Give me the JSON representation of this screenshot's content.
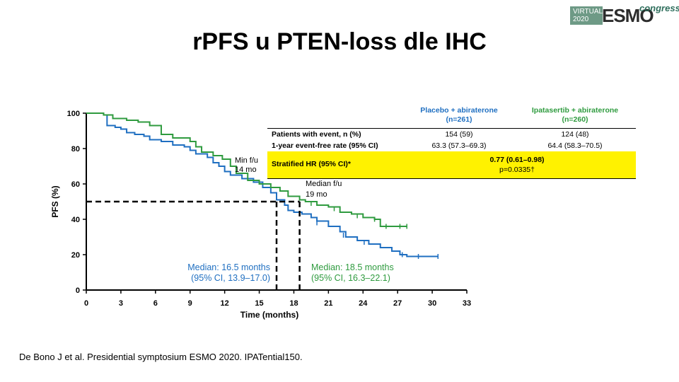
{
  "title": "rPFS u PTEN-loss dle IHC",
  "logo": {
    "virtual": "VIRTUAL",
    "year": "2020",
    "brand": "ESMO",
    "congress": "congress"
  },
  "source": "De Bono J et al. Presidential symptosium ESMO 2020. IPATential150.",
  "table": {
    "col1": "Placebo + abiraterone",
    "col1_n": "(n=261)",
    "col2": "Ipatasertib + abiraterone",
    "col2_n": "(n=260)",
    "rows": [
      {
        "label": "Patients with event, n (%)",
        "placebo": "154 (59)",
        "ipat": "124 (48)"
      },
      {
        "label": "1-year event-free rate (95% CI)",
        "placebo": "63.3 (57.3–69.3)",
        "ipat": "64.4 (58.3–70.5)"
      }
    ],
    "hr_label": "Stratified HR (95% CI)*",
    "hr_value": "0.77 (0.61–0.98)",
    "p_value": "p=0.0335†"
  },
  "colors": {
    "placebo": "#1f6fc1",
    "ipat": "#2f9b3f",
    "highlight": "#fff200"
  },
  "chart_data": {
    "type": "line",
    "xlabel": "Time (months)",
    "ylabel": "PFS (%)",
    "xlim": [
      0,
      33
    ],
    "ylim": [
      0,
      100
    ],
    "xticks": [
      0,
      3,
      6,
      9,
      12,
      15,
      18,
      21,
      24,
      27,
      30,
      33
    ],
    "yticks": [
      0,
      20,
      40,
      60,
      80,
      100
    ],
    "series": [
      {
        "name": "Placebo + abiraterone",
        "color": "#1f6fc1",
        "points": [
          [
            0,
            100
          ],
          [
            1.5,
            99
          ],
          [
            1.8,
            93
          ],
          [
            2.5,
            92
          ],
          [
            3,
            91
          ],
          [
            3.5,
            89
          ],
          [
            4.2,
            88
          ],
          [
            5,
            87
          ],
          [
            5.5,
            85
          ],
          [
            6.5,
            84
          ],
          [
            7.5,
            82
          ],
          [
            8.5,
            81
          ],
          [
            9,
            79
          ],
          [
            9.5,
            77
          ],
          [
            10.5,
            75
          ],
          [
            11,
            72
          ],
          [
            11.5,
            70
          ],
          [
            12,
            67
          ],
          [
            12.5,
            65
          ],
          [
            13.5,
            63
          ],
          [
            14.5,
            61
          ],
          [
            15.3,
            58
          ],
          [
            16,
            55
          ],
          [
            16.5,
            51
          ],
          [
            17.2,
            48
          ],
          [
            17.5,
            45
          ],
          [
            18,
            44
          ],
          [
            18.7,
            43
          ],
          [
            19.5,
            41
          ],
          [
            20,
            39
          ],
          [
            21,
            36
          ],
          [
            22,
            33
          ],
          [
            22.5,
            30
          ],
          [
            23.5,
            28
          ],
          [
            24.5,
            26
          ],
          [
            25.5,
            24
          ],
          [
            26.5,
            22
          ],
          [
            27.2,
            20
          ],
          [
            27.8,
            19
          ],
          [
            30.5,
            19
          ]
        ],
        "censor": [
          [
            20,
            38
          ],
          [
            22.3,
            31
          ],
          [
            24.1,
            27
          ],
          [
            27.4,
            20
          ],
          [
            28.8,
            19
          ],
          [
            30.5,
            19
          ]
        ]
      },
      {
        "name": "Ipatasertib + abiraterone",
        "color": "#2f9b3f",
        "points": [
          [
            0,
            100
          ],
          [
            1.5,
            99
          ],
          [
            2.3,
            97
          ],
          [
            3.5,
            96
          ],
          [
            4.5,
            95
          ],
          [
            5.5,
            93
          ],
          [
            6.5,
            88
          ],
          [
            7.5,
            86
          ],
          [
            8.5,
            86
          ],
          [
            9,
            84
          ],
          [
            9.5,
            81
          ],
          [
            10,
            78
          ],
          [
            11,
            76
          ],
          [
            11.8,
            74
          ],
          [
            12.5,
            70
          ],
          [
            13,
            66
          ],
          [
            14,
            62
          ],
          [
            15,
            60
          ],
          [
            16,
            58
          ],
          [
            16.8,
            56
          ],
          [
            17.5,
            53
          ],
          [
            18.5,
            51
          ],
          [
            19,
            50
          ],
          [
            20,
            48
          ],
          [
            21,
            47
          ],
          [
            22,
            44
          ],
          [
            23,
            43
          ],
          [
            24,
            41
          ],
          [
            25,
            40
          ],
          [
            25.5,
            36
          ],
          [
            27.8,
            36
          ]
        ],
        "censor": [
          [
            19.5,
            49
          ],
          [
            21.5,
            46
          ],
          [
            23.5,
            42
          ],
          [
            25,
            40
          ],
          [
            26,
            36
          ],
          [
            27.2,
            36
          ],
          [
            27.8,
            36
          ]
        ]
      }
    ],
    "annotations": {
      "min_fu": "Min f/u",
      "min_fu_val": "14 mo",
      "median_fu": "Median f/u",
      "median_fu_val": "19 mo",
      "median_placebo": "Median: 16.5 months",
      "median_placebo_ci": "(95% CI, 13.9–17.0)",
      "median_ipat": "Median: 18.5 months",
      "median_ipat_ci": "(95% CI, 16.3–22.1)",
      "median_line_y": 50,
      "median_x_placebo": 16.5,
      "median_x_ipat": 18.5
    }
  }
}
